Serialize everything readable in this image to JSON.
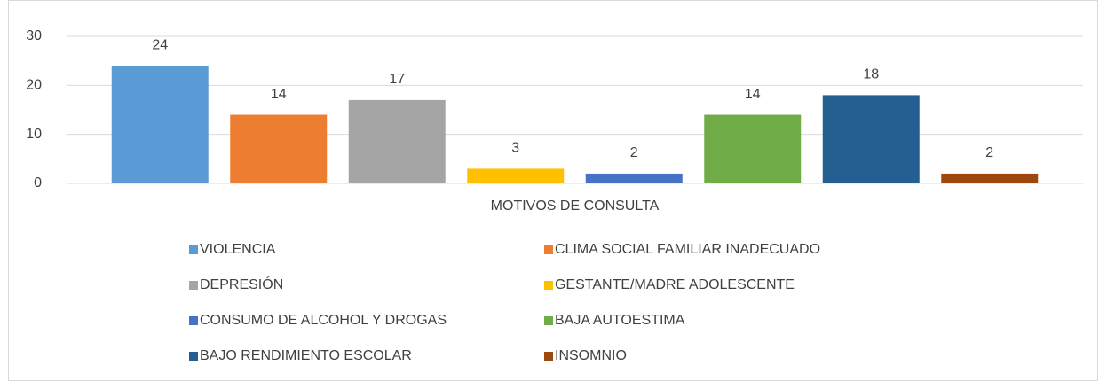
{
  "chart_data": {
    "type": "bar",
    "categories": [
      "MOTIVOS DE CONSULTA"
    ],
    "series": [
      {
        "name": "VIOLENCIA",
        "color": "#5b9bd5",
        "values": [
          24
        ]
      },
      {
        "name": "CLIMA SOCIAL FAMILIAR INADECUADO",
        "color": "#ed7d31",
        "values": [
          14
        ]
      },
      {
        "name": "DEPRESIÓN",
        "color": "#a5a5a5",
        "values": [
          17
        ]
      },
      {
        "name": "GESTANTE/MADRE ADOLESCENTE",
        "color": "#ffc000",
        "values": [
          3
        ]
      },
      {
        "name": "CONSUMO DE ALCOHOL Y DROGAS",
        "color": "#4472c4",
        "values": [
          2
        ]
      },
      {
        "name": "BAJA AUTOESTIMA",
        "color": "#70ad47",
        "values": [
          14
        ]
      },
      {
        "name": "BAJO RENDIMIENTO ESCOLAR",
        "color": "#255e91",
        "values": [
          18
        ]
      },
      {
        "name": "INSOMNIO",
        "color": "#9e480e",
        "values": [
          2
        ]
      }
    ],
    "ylim": [
      0,
      30
    ],
    "yticks": [
      0,
      10,
      20,
      30
    ],
    "grid": true,
    "legend": "bottom"
  }
}
